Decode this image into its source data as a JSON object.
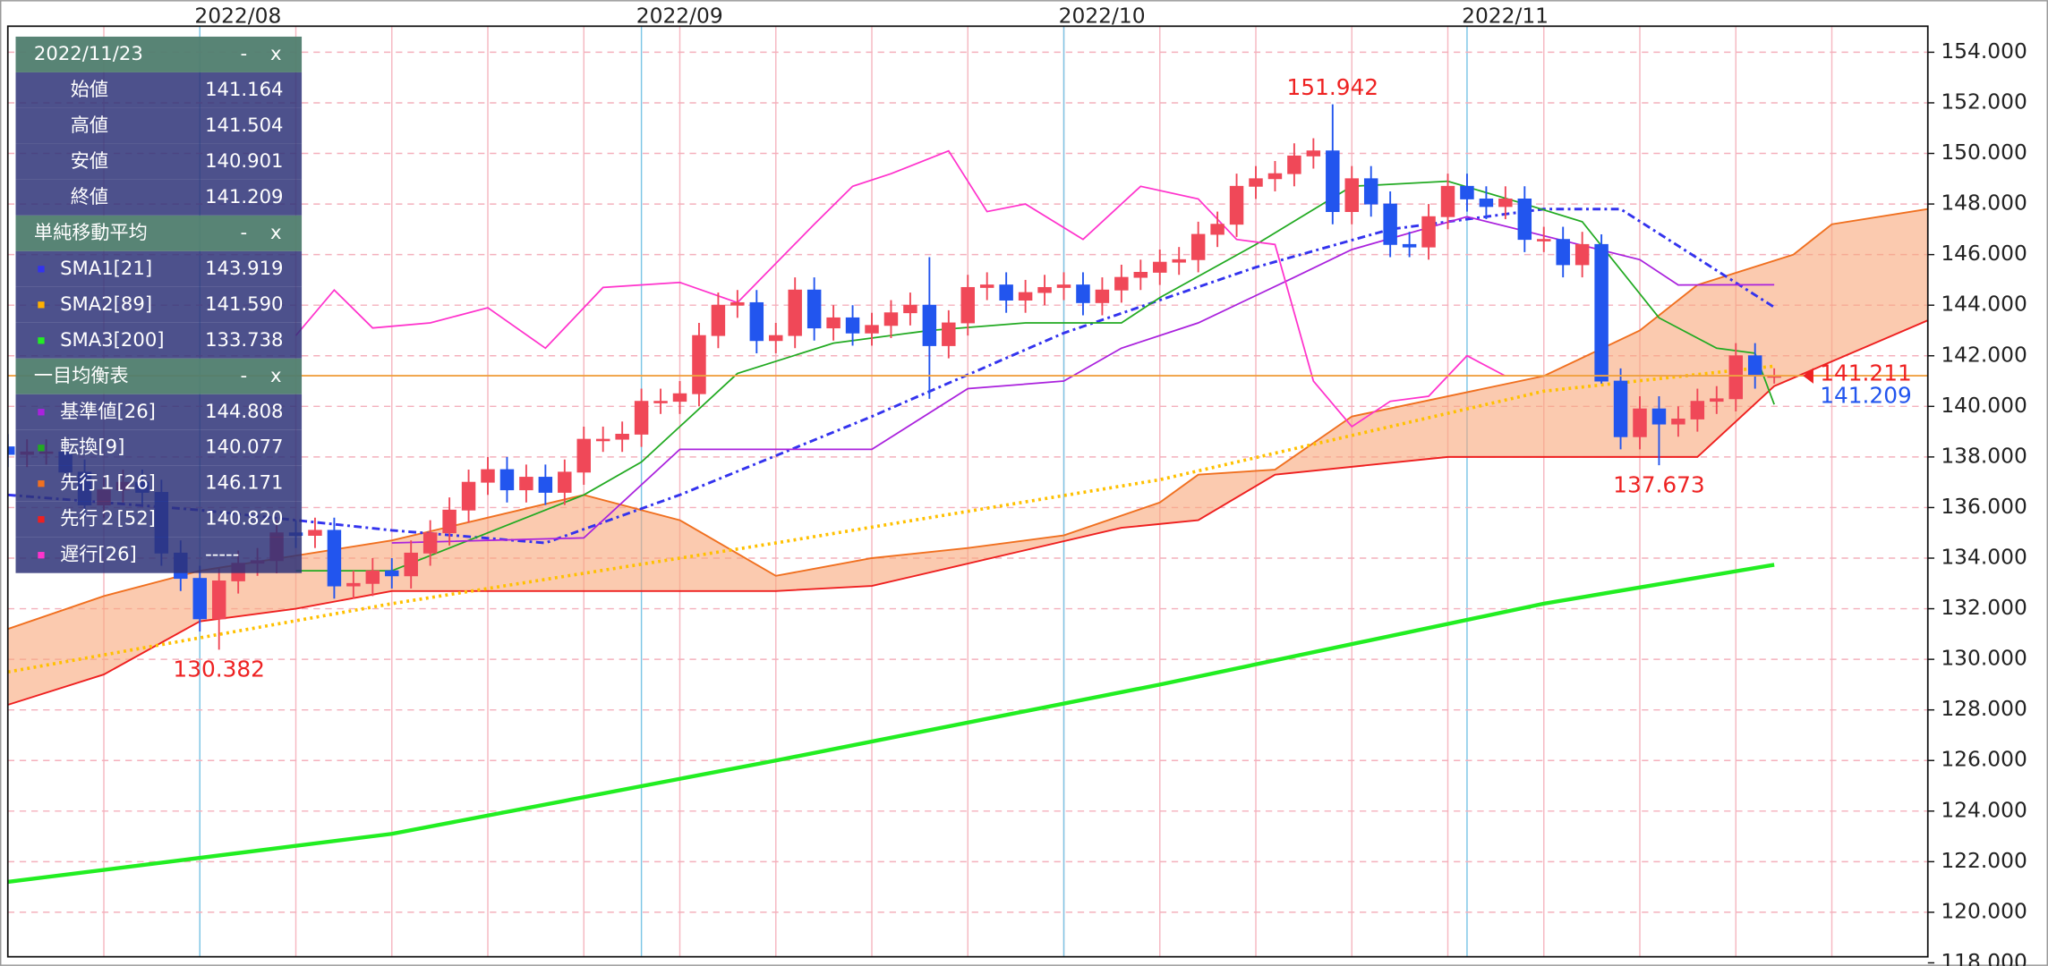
{
  "chart_data": {
    "type": "candlestick",
    "up_color": "#f04858",
    "down_color": "#2255ee",
    "xlim": [
      0,
      100
    ],
    "ylim": [
      118.24,
      155.03
    ],
    "xticks": [
      {
        "value": 10,
        "label": "2022/08"
      },
      {
        "value": 33,
        "label": "2022/09"
      },
      {
        "value": 55,
        "label": "2022/10"
      },
      {
        "value": 76,
        "label": "2022/11"
      }
    ],
    "yticks": [
      {
        "value": 118,
        "label": "118.000"
      },
      {
        "value": 120,
        "label": "120.000"
      },
      {
        "value": 122,
        "label": "122.000"
      },
      {
        "value": 124,
        "label": "124.000"
      },
      {
        "value": 126,
        "label": "126.000"
      },
      {
        "value": 128,
        "label": "128.000"
      },
      {
        "value": 130,
        "label": "130.000"
      },
      {
        "value": 132,
        "label": "132.000"
      },
      {
        "value": 134,
        "label": "134.000"
      },
      {
        "value": 136,
        "label": "136.000"
      },
      {
        "value": 138,
        "label": "138.000"
      },
      {
        "value": 140,
        "label": "140.000"
      },
      {
        "value": 142,
        "label": "142.000"
      },
      {
        "value": 144,
        "label": "144.000"
      },
      {
        "value": 146,
        "label": "146.000"
      },
      {
        "value": 148,
        "label": "148.000"
      },
      {
        "value": 150,
        "label": "150.000"
      },
      {
        "value": 152,
        "label": "152.000"
      },
      {
        "value": 154,
        "label": "154.000"
      }
    ],
    "grid": true,
    "candles": {
      "open": [
        138.4,
        138.1,
        138.2,
        138.2,
        137.4,
        136.1,
        136.7,
        137.0,
        136.6,
        134.2,
        133.2,
        131.6,
        133.1,
        133.8,
        133.9,
        135.0,
        134.9,
        135.1,
        132.9,
        133.0,
        133.5,
        133.3,
        134.2,
        135.0,
        135.9,
        137.0,
        137.5,
        136.7,
        137.2,
        136.6,
        137.4,
        138.7,
        138.7,
        138.9,
        140.2,
        140.2,
        140.5,
        142.8,
        144.0,
        144.1,
        142.6,
        142.8,
        144.6,
        143.1,
        143.5,
        142.9,
        143.2,
        143.7,
        144.0,
        142.4,
        143.3,
        144.7,
        144.8,
        144.2,
        144.5,
        144.7,
        144.8,
        144.1,
        144.6,
        145.1,
        145.3,
        145.7,
        145.8,
        146.8,
        147.2,
        148.7,
        149.0,
        149.2,
        149.9,
        150.1,
        147.7,
        149.0,
        148.0,
        146.4,
        146.3,
        147.5,
        148.7,
        148.2,
        147.9,
        148.2,
        146.6,
        146.6,
        145.6,
        146.4,
        141.0,
        138.8,
        139.9,
        139.3,
        139.5,
        140.2,
        140.3,
        142.0,
        141.164
      ],
      "high": [
        138.9,
        138.7,
        138.7,
        138.7,
        137.9,
        137.2,
        137.5,
        137.5,
        137.1,
        134.7,
        133.7,
        133.6,
        134.3,
        134.4,
        135.5,
        135.5,
        135.6,
        135.6,
        133.5,
        134.0,
        134.0,
        134.7,
        135.5,
        136.4,
        137.5,
        138.0,
        138.0,
        137.7,
        137.7,
        137.9,
        139.2,
        139.2,
        139.4,
        140.7,
        140.7,
        141.0,
        143.3,
        144.5,
        144.6,
        144.6,
        143.3,
        145.1,
        145.1,
        144.0,
        144.0,
        143.7,
        144.2,
        144.5,
        145.9,
        143.8,
        145.2,
        145.3,
        145.3,
        145.0,
        145.2,
        145.3,
        145.3,
        145.1,
        145.6,
        145.8,
        146.2,
        146.3,
        147.3,
        147.7,
        149.2,
        149.5,
        149.7,
        150.4,
        150.6,
        151.942,
        149.5,
        149.5,
        148.5,
        146.9,
        148.0,
        149.2,
        149.2,
        148.7,
        148.7,
        148.7,
        147.1,
        147.1,
        146.9,
        146.8,
        141.5,
        140.4,
        140.4,
        140.0,
        140.7,
        140.8,
        142.5,
        142.5,
        141.504
      ],
      "low": [
        137.6,
        137.6,
        137.7,
        136.9,
        135.6,
        135.6,
        136.2,
        136.1,
        133.7,
        132.7,
        131.1,
        130.382,
        132.6,
        133.3,
        133.4,
        134.4,
        134.4,
        132.4,
        132.4,
        132.5,
        132.8,
        132.8,
        133.7,
        134.5,
        135.4,
        136.5,
        136.2,
        136.2,
        136.1,
        136.1,
        136.9,
        138.2,
        138.2,
        138.4,
        139.7,
        139.7,
        140.0,
        142.3,
        143.5,
        142.1,
        142.1,
        142.3,
        142.6,
        142.6,
        142.4,
        142.4,
        142.7,
        143.2,
        140.3,
        141.9,
        142.8,
        144.2,
        143.7,
        143.7,
        144.0,
        144.2,
        143.6,
        143.6,
        144.1,
        144.6,
        144.8,
        145.2,
        145.3,
        146.3,
        146.7,
        148.2,
        148.5,
        148.7,
        149.4,
        147.2,
        147.2,
        147.5,
        145.9,
        145.9,
        145.8,
        147.0,
        147.7,
        147.4,
        147.4,
        146.1,
        146.1,
        145.1,
        145.1,
        140.9,
        138.3,
        138.3,
        137.673,
        138.8,
        139.0,
        139.7,
        139.8,
        140.7,
        140.901
      ],
      "close": [
        138.1,
        138.2,
        138.2,
        137.4,
        136.1,
        136.7,
        137.0,
        136.6,
        134.2,
        133.2,
        131.6,
        133.1,
        133.8,
        133.9,
        135.0,
        134.9,
        135.1,
        132.9,
        133.0,
        133.5,
        133.3,
        134.2,
        135.0,
        135.9,
        137.0,
        137.5,
        136.7,
        137.2,
        136.6,
        137.4,
        138.7,
        138.7,
        138.9,
        140.2,
        140.2,
        140.5,
        142.8,
        144.0,
        144.1,
        142.6,
        142.8,
        144.6,
        143.1,
        143.5,
        142.9,
        143.2,
        143.7,
        144.0,
        142.4,
        143.3,
        144.7,
        144.8,
        144.2,
        144.5,
        144.7,
        144.8,
        144.1,
        144.6,
        145.1,
        145.3,
        145.7,
        145.8,
        146.8,
        147.2,
        148.7,
        149.0,
        149.2,
        149.9,
        150.1,
        147.7,
        149.0,
        148.0,
        146.4,
        146.3,
        147.5,
        148.7,
        148.2,
        147.9,
        148.2,
        146.6,
        146.6,
        145.6,
        146.4,
        141.0,
        138.8,
        139.9,
        139.3,
        139.5,
        140.2,
        140.3,
        142.0,
        141.2,
        141.209
      ]
    },
    "cloud": {
      "fill": "#f9a67a",
      "span_a": {
        "color": "#f07020",
        "x": [
          0,
          5,
          10,
          20,
          30,
          35,
          40,
          45,
          50,
          55,
          60,
          62,
          66,
          70,
          80,
          85,
          88,
          93,
          95,
          100
        ],
        "values": [
          131.2,
          132.5,
          133.5,
          134.7,
          136.5,
          135.5,
          133.3,
          134.0,
          134.4,
          134.9,
          136.2,
          137.3,
          137.5,
          139.6,
          141.2,
          143.0,
          144.8,
          146.0,
          147.2,
          147.8
        ]
      },
      "span_b": {
        "color": "#ee2020",
        "x": [
          0,
          5,
          10,
          15,
          20,
          40,
          45,
          58,
          62,
          66,
          75,
          88,
          92,
          100
        ],
        "values": [
          128.2,
          129.4,
          131.5,
          132.0,
          132.7,
          132.7,
          132.9,
          135.2,
          135.5,
          137.3,
          138.0,
          138.0,
          140.8,
          143.4
        ]
      }
    },
    "overlays": [
      {
        "color": "#22ee22",
        "width": 3,
        "dash": "none",
        "x": [
          0,
          20,
          40,
          60,
          80,
          92
        ],
        "values": [
          121.2,
          123.1,
          126.0,
          129.0,
          132.2,
          133.738
        ]
      },
      {
        "color": "#ffc000",
        "width": 2.5,
        "dash": "2 3",
        "x": [
          0,
          20,
          40,
          60,
          80,
          92
        ],
        "values": [
          129.5,
          132.2,
          134.6,
          137.1,
          140.6,
          141.59
        ]
      },
      {
        "color": "#3333ee",
        "width": 2,
        "dash": "6 3 2 3",
        "x": [
          0,
          10,
          20,
          28,
          35,
          45,
          55,
          65,
          72,
          80,
          84,
          92
        ],
        "values": [
          136.5,
          135.9,
          135.1,
          134.6,
          136.5,
          139.6,
          142.9,
          145.5,
          147.0,
          147.8,
          147.8,
          143.919
        ]
      },
      {
        "color": "#22aa22",
        "width": 1.2,
        "dash": "none",
        "x": [
          15,
          20,
          25,
          30,
          33,
          38,
          43,
          48,
          53,
          58,
          60,
          65,
          70,
          75,
          79,
          82,
          86,
          89,
          91,
          92
        ],
        "values": [
          133.5,
          133.5,
          135.0,
          136.5,
          137.8,
          141.3,
          142.5,
          143.0,
          143.3,
          143.3,
          144.3,
          146.4,
          148.7,
          148.9,
          148.0,
          147.3,
          143.5,
          142.3,
          142.1,
          140.077
        ]
      },
      {
        "color": "#aa22dd",
        "width": 1.2,
        "dash": "none",
        "x": [
          20,
          30,
          35,
          40,
          45,
          50,
          55,
          58,
          62,
          67,
          70,
          76,
          85,
          87,
          92
        ],
        "values": [
          134.6,
          134.8,
          138.3,
          138.3,
          138.3,
          140.7,
          141.0,
          142.3,
          143.3,
          145.1,
          146.2,
          147.5,
          145.8,
          144.8,
          144.808
        ]
      },
      {
        "color": "#ff33cc",
        "width": 1.2,
        "dash": "none",
        "x": [
          15,
          17,
          19,
          22,
          25,
          28,
          31,
          35,
          38,
          42,
          44,
          46,
          49,
          51,
          53,
          56,
          59,
          62,
          64,
          66,
          68,
          70,
          72,
          74,
          76,
          78
        ],
        "values": [
          142.8,
          144.6,
          143.1,
          143.3,
          143.9,
          142.3,
          144.7,
          144.9,
          144.1,
          147.2,
          148.7,
          149.2,
          150.1,
          147.7,
          148.0,
          146.6,
          148.7,
          148.2,
          146.6,
          146.4,
          141.0,
          139.2,
          140.2,
          140.4,
          142.0,
          141.2
        ]
      }
    ],
    "price_line": {
      "value": 141.211,
      "color": "#f0a040",
      "label_color": "#ee2222"
    },
    "close_label_color": "#2255ee",
    "panel": {
      "controls": [
        "-",
        "x"
      ],
      "sections": [
        {
          "title": "2022/11/23",
          "rows": [
            {
              "label": "始値",
              "value": "141.164"
            },
            {
              "label": "高値",
              "value": "141.504"
            },
            {
              "label": "安値",
              "value": "140.901"
            },
            {
              "label": "終値",
              "value": "141.209"
            }
          ]
        },
        {
          "title": "単純移動平均",
          "rows": [
            {
              "label": "SMA1[21]",
              "value": "143.919",
              "color": "#3333ee"
            },
            {
              "label": "SMA2[89]",
              "value": "141.590",
              "color": "#ffb000"
            },
            {
              "label": "SMA3[200]",
              "value": "133.738",
              "color": "#22ee22"
            }
          ]
        },
        {
          "title": "一目均衡表",
          "rows": [
            {
              "label": "基準値[26]",
              "value": "144.808",
              "color": "#aa22dd"
            },
            {
              "label": "転換[9]",
              "value": "140.077",
              "color": "#22aa22"
            },
            {
              "label": "先行１[26]",
              "value": "146.171",
              "color": "#f07020"
            },
            {
              "label": "先行２[52]",
              "value": "140.820",
              "color": "#ee2020"
            },
            {
              "label": "遅行[26]",
              "value": "-----",
              "color": "#ff33cc"
            }
          ]
        }
      ]
    }
  }
}
